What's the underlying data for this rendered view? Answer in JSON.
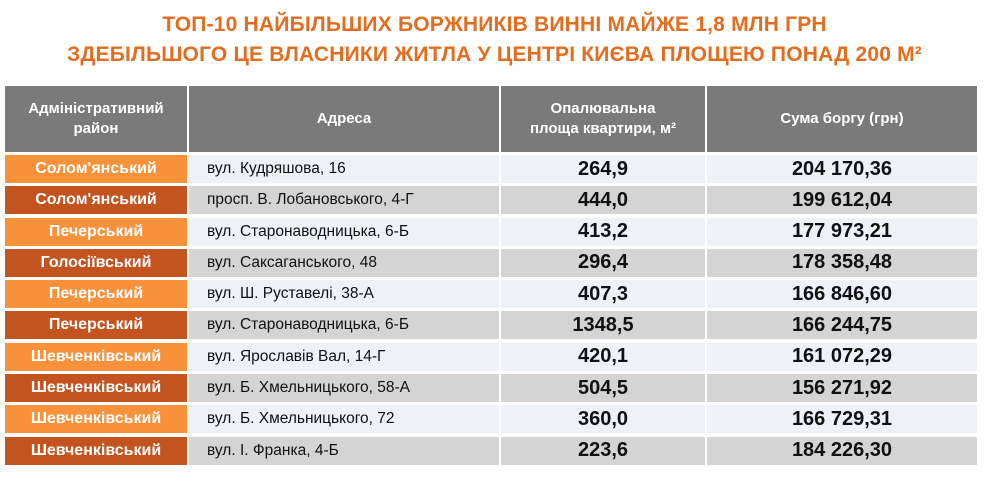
{
  "title": {
    "line1": "ТОП-10 НАЙБІЛЬШИХ БОРЖНИКІВ ВИННІ МАЙЖЕ 1,8 МЛН ГРН",
    "line2": "ЗДЕБІЛЬШОГО ЦЕ ВЛАСНИКИ ЖИТЛА У ЦЕНТРІ КИЄВА ПЛОЩЕЮ ПОНАД 200 М²"
  },
  "table": {
    "headers": {
      "district_l1": "Адміністративний",
      "district_l2": "район",
      "address": "Адреса",
      "area_l1": "Опалювальна",
      "area_l2": "площа квартири, м²",
      "debt": "Сума боргу (грн)"
    },
    "rows": [
      {
        "district": "Солом'янський",
        "address": "вул. Кудряшова, 16",
        "area": "264,9",
        "debt": "204 170,36"
      },
      {
        "district": "Солом'янський",
        "address": "просп. В. Лобановського, 4-Г",
        "area": "444,0",
        "debt": "199 612,04"
      },
      {
        "district": "Печерський",
        "address": "вул. Старонаводницька, 6-Б",
        "area": "413,2",
        "debt": "177 973,21"
      },
      {
        "district": "Голосіївський",
        "address": "вул. Саксаганського, 48",
        "area": "296,4",
        "debt": "178 358,48"
      },
      {
        "district": "Печерський",
        "address": "вул. Ш. Руставелі, 38-А",
        "area": "407,3",
        "debt": "166 846,60"
      },
      {
        "district": "Печерський",
        "address": "вул. Старонаводницька, 6-Б",
        "area": "1348,5",
        "debt": "166 244,75"
      },
      {
        "district": "Шевченківський",
        "address": "вул. Ярославів Вал, 14-Г",
        "area": "420,1",
        "debt": "161 072,29"
      },
      {
        "district": "Шевченківський",
        "address": "вул. Б. Хмельницького, 58-А",
        "area": "504,5",
        "debt": "156 271,92"
      },
      {
        "district": "Шевченківський",
        "address": "вул. Б. Хмельницького, 72",
        "area": "360,0",
        "debt": "166 729,31"
      },
      {
        "district": "Шевченківський",
        "address": "вул. І. Франка, 4-Б",
        "area": "223,6",
        "debt": "184 226,30"
      }
    ]
  }
}
